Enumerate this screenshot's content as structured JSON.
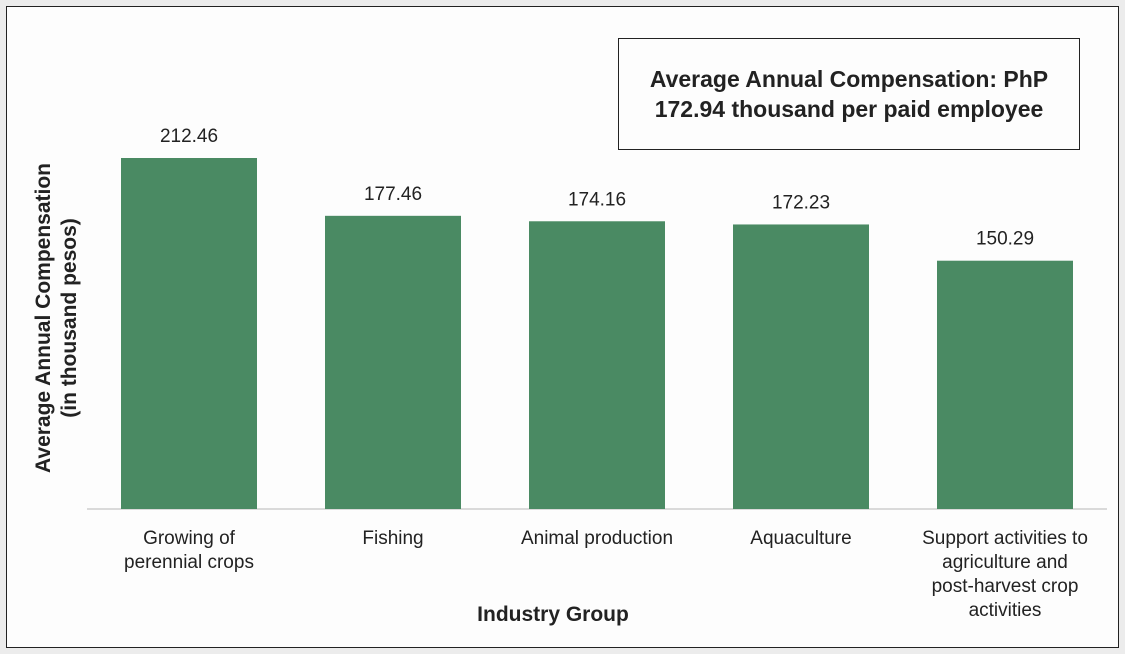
{
  "chart_data": {
    "type": "bar",
    "categories": [
      [
        "Growing of",
        "perennial crops"
      ],
      [
        "Fishing"
      ],
      [
        "Animal production"
      ],
      [
        "Aquaculture"
      ],
      [
        "Support activities to",
        "agriculture and",
        "post-harvest crop",
        "activities"
      ]
    ],
    "values": [
      212.46,
      177.46,
      174.16,
      172.23,
      150.29
    ],
    "value_labels": [
      "212.46",
      "177.46",
      "174.16",
      "172.23",
      "150.29"
    ],
    "annotation": "Average Annual Compensation: PhP 172.94 thousand per paid employee",
    "xlabel": "Industry Group",
    "ylabel": [
      "Average  Annual Compensation",
      "(in thousand pesos)"
    ],
    "ylim": [
      0,
      212.46
    ],
    "grid": false,
    "legend": "none",
    "bar_color": "#4a8a63"
  }
}
